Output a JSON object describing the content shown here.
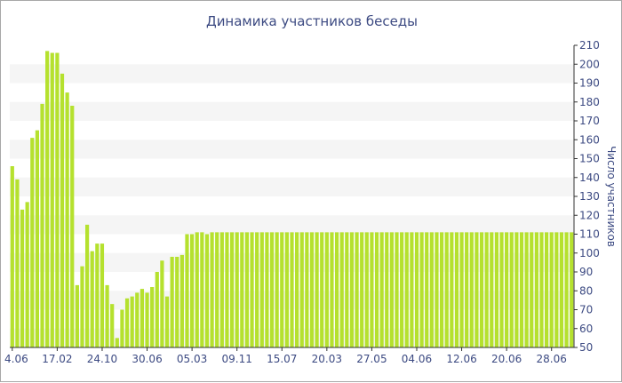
{
  "chart_data": {
    "type": "bar",
    "title": "Динамика участников беседы",
    "ylabel": "Число участников",
    "xlabel": "",
    "ylim": [
      50,
      210
    ],
    "yticks": [
      50,
      60,
      70,
      80,
      90,
      100,
      110,
      120,
      130,
      140,
      150,
      160,
      170,
      180,
      190,
      200,
      210
    ],
    "y_axis_side": "right",
    "grid": "horizontal alternating bands",
    "x_tick_labels": [
      {
        "label": "4.06",
        "index": 0
      },
      {
        "label": "17.02",
        "index": 9
      },
      {
        "label": "24.10",
        "index": 18
      },
      {
        "label": "30.06",
        "index": 27
      },
      {
        "label": "05.03",
        "index": 36
      },
      {
        "label": "09.11",
        "index": 45
      },
      {
        "label": "15.07",
        "index": 54
      },
      {
        "label": "20.03",
        "index": 63
      },
      {
        "label": "27.05",
        "index": 72
      },
      {
        "label": "04.06",
        "index": 81
      },
      {
        "label": "12.06",
        "index": 90
      },
      {
        "label": "20.06",
        "index": 99
      },
      {
        "label": "28.06",
        "index": 108
      }
    ],
    "values": [
      146,
      139,
      123,
      127,
      161,
      165,
      179,
      207,
      206,
      206,
      195,
      185,
      178,
      83,
      93,
      115,
      101,
      105,
      105,
      83,
      73,
      55,
      70,
      76,
      77,
      79,
      81,
      79,
      82,
      90,
      96,
      77,
      98,
      98,
      99,
      110,
      110,
      111,
      111,
      110,
      111,
      111,
      111,
      111,
      111,
      111,
      111,
      111,
      111,
      111,
      111,
      111,
      111,
      111,
      111,
      111,
      111,
      111,
      111,
      111,
      111,
      111,
      111,
      111,
      111,
      111,
      111,
      111,
      111,
      111,
      111,
      111,
      111,
      111,
      111,
      111,
      111,
      111,
      111,
      111,
      111,
      111,
      111,
      111,
      111,
      111,
      111,
      111,
      111,
      111,
      111,
      111,
      111,
      111,
      111,
      111,
      111,
      111,
      111,
      111,
      111,
      111,
      111,
      111,
      111,
      111,
      111,
      111,
      111,
      111,
      111,
      111,
      111
    ],
    "colors": {
      "bar": "#b5e12e",
      "band": "#f5f5f5",
      "text": "#3c4a82",
      "axis": "#333333"
    }
  }
}
